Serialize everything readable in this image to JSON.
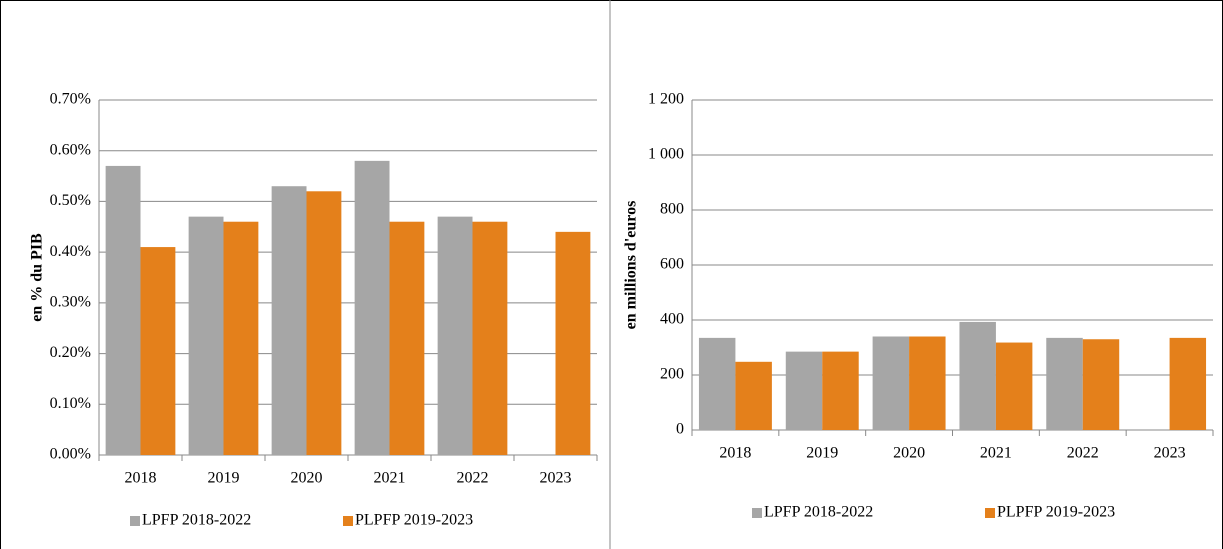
{
  "chart_data": [
    {
      "type": "bar",
      "ylabel": "en % du PIB",
      "categories": [
        "2018",
        "2019",
        "2020",
        "2021",
        "2022",
        "2023"
      ],
      "series": [
        {
          "name": "LPFP 2018-2022",
          "color": "#a6a6a6",
          "values": [
            0.57,
            0.47,
            0.53,
            0.58,
            0.47,
            null
          ]
        },
        {
          "name": "PLPFP 2019-2023",
          "color": "#e4801b",
          "values": [
            0.41,
            0.46,
            0.52,
            0.46,
            0.46,
            0.44
          ]
        }
      ],
      "ylim": [
        0,
        0.7
      ],
      "yticks": [
        {
          "value": 0,
          "label": "0.00%"
        },
        {
          "value": 0.1,
          "label": "0.10%"
        },
        {
          "value": 0.2,
          "label": "0.20%"
        },
        {
          "value": 0.3,
          "label": "0.30%"
        },
        {
          "value": 0.4,
          "label": "0.40%"
        },
        {
          "value": 0.5,
          "label": "0.50%"
        },
        {
          "value": 0.6,
          "label": "0.60%"
        },
        {
          "value": 0.7,
          "label": "0.70%"
        }
      ],
      "grid": true,
      "legend": "bottom"
    },
    {
      "type": "bar",
      "ylabel": "en millions d'euros",
      "categories": [
        "2018",
        "2019",
        "2020",
        "2021",
        "2022",
        "2023"
      ],
      "series": [
        {
          "name": "LPFP 2018-2022",
          "color": "#a6a6a6",
          "values": [
            335,
            285,
            340,
            393,
            335,
            null
          ]
        },
        {
          "name": "PLPFP 2019-2023",
          "color": "#e4801b",
          "values": [
            248,
            285,
            340,
            318,
            330,
            335
          ]
        }
      ],
      "ylim": [
        0,
        1200
      ],
      "yticks": [
        0,
        200,
        400,
        600,
        800,
        {
          "value": 1000,
          "label": "1 000"
        },
        {
          "value": 1200,
          "label": "1 200"
        }
      ],
      "grid": true,
      "legend": "bottom"
    }
  ]
}
